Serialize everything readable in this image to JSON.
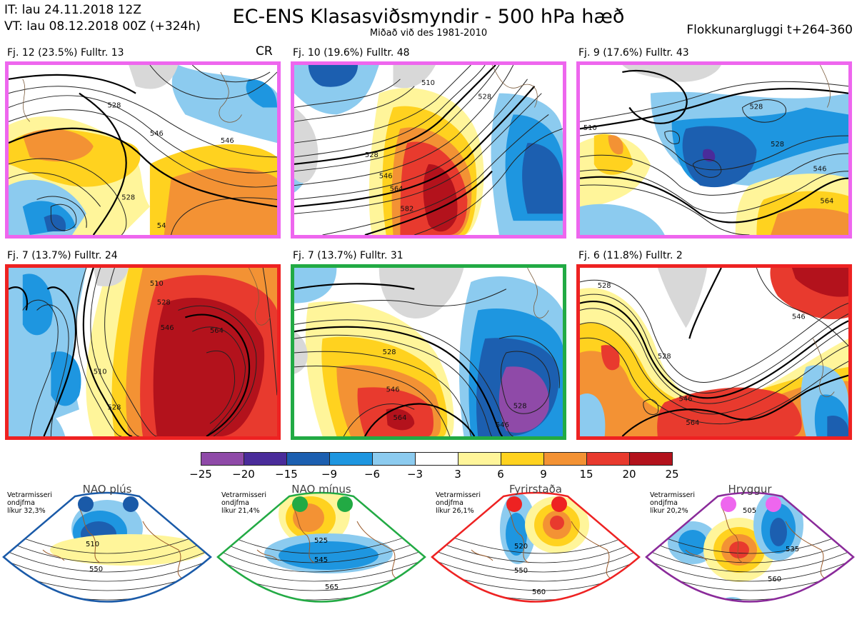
{
  "header": {
    "init_time": "IT: lau 24.11.2018 12Z",
    "valid_time": "VT: lau 08.12.2018 00Z  (+324h)",
    "title": "EC-ENS Klasasviðsmyndir - 500 hPa hæð",
    "subtitle": "Miðað við des 1981-2010",
    "window": "Flokkunargluggi t+264-360"
  },
  "cr_label": "CR",
  "panels": [
    {
      "label": "Fj. 12 (23.5%)   Fulltr. 13",
      "border": "#ee66ee",
      "contours": [
        "546",
        "528",
        "528",
        "546",
        "54"
      ]
    },
    {
      "label": "Fj. 10 (19.6%)   Fulltr. 48",
      "border": "#ee66ee",
      "contours": [
        "510",
        "528",
        "528",
        "546",
        "564",
        "582"
      ]
    },
    {
      "label": "Fj. 9 (17.6%)   Fulltr. 43",
      "border": "#ee66ee",
      "contours": [
        "528",
        "510",
        "528",
        "546",
        "564"
      ]
    },
    {
      "label": "Fj. 7 (13.7%)   Fulltr. 24",
      "border": "#ee2222",
      "contours": [
        "510",
        "528",
        "546",
        "564",
        "510",
        "528"
      ]
    },
    {
      "label": "Fj. 7 (13.7%)   Fulltr. 31",
      "border": "#22aa44",
      "contours": [
        "528",
        "546",
        "564",
        "528",
        "546"
      ]
    },
    {
      "label": "Fj. 6 (11.8%)   Fulltr. 2",
      "border": "#ee2222",
      "contours": [
        "528",
        "546",
        "528",
        "546",
        "564"
      ]
    }
  ],
  "colorbar": {
    "colors": [
      "#8f4aa8",
      "#4a2c9a",
      "#1c5fb0",
      "#1e96e0",
      "#8ccbef",
      "#ffffff",
      "#fff59a",
      "#ffd21f",
      "#f39234",
      "#e83a2e",
      "#b3121c"
    ],
    "ticks": [
      "−25",
      "−20",
      "−15",
      "−9",
      "−6",
      "−3",
      "3",
      "6",
      "9",
      "15",
      "20",
      "25"
    ]
  },
  "regimes": [
    {
      "name": "NAO plús",
      "note_line1": "Vetrarmisseri",
      "note_line2": "ondjfma",
      "note_line3": "líkur 32,3%",
      "color": "#1a5aa8",
      "dot": "#1a5aa8",
      "contours": [
        "510",
        "550"
      ]
    },
    {
      "name": "NAO mínus",
      "note_line1": "Vetrarmisseri",
      "note_line2": "ondjfma",
      "note_line3": "líkur 21,4%",
      "color": "#22aa44",
      "dot": "#22aa44",
      "contours": [
        "525",
        "545",
        "565"
      ]
    },
    {
      "name": "Fyrirstaða",
      "note_line1": "Vetrarmisseri",
      "note_line2": "ondjfma",
      "note_line3": "líkur 26,1%",
      "color": "#ee2222",
      "dot": "#ee2222",
      "contours": [
        "520",
        "550",
        "560"
      ]
    },
    {
      "name": "Hryggur",
      "note_line1": "Vetrarmisseri",
      "note_line2": "ondjfma",
      "note_line3": "líkur 20,2%",
      "color": "#8a2a9a",
      "dot": "#ee66ee",
      "contours": [
        "505",
        "535",
        "560"
      ]
    }
  ]
}
